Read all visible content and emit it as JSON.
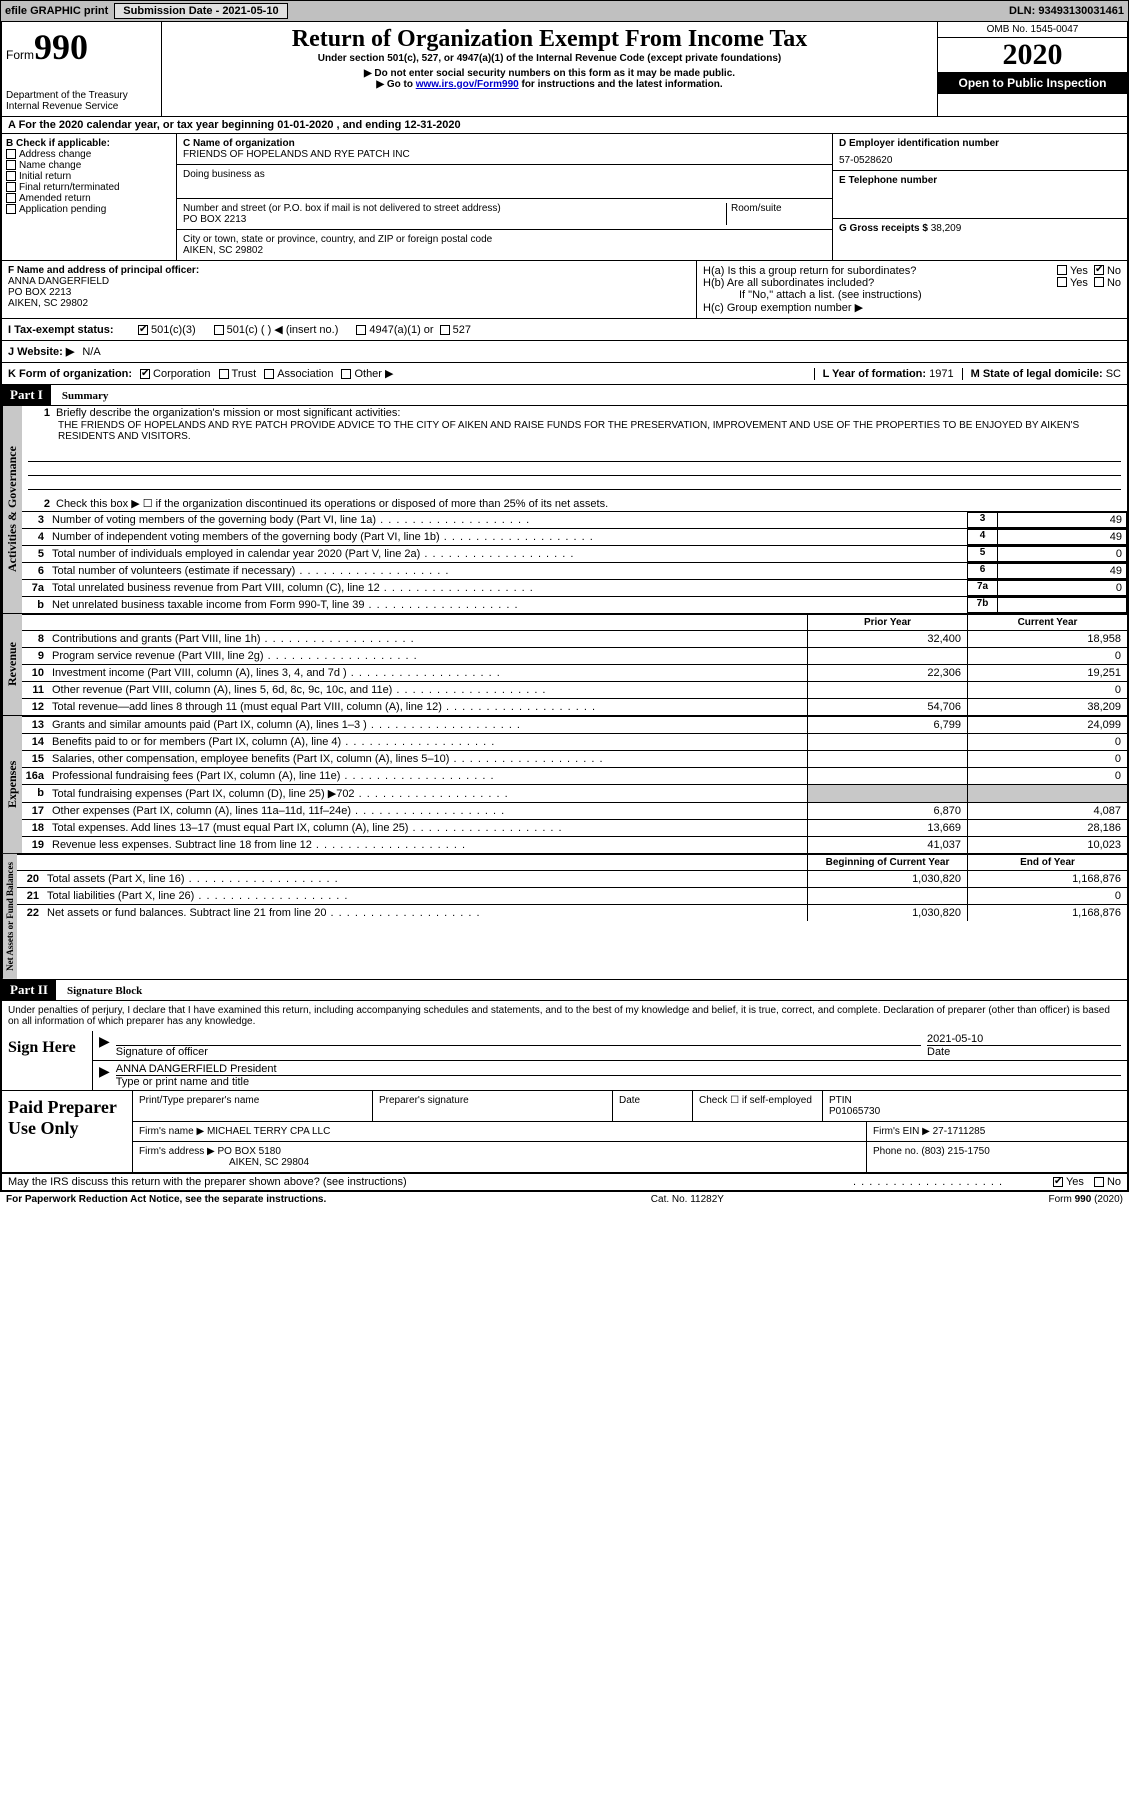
{
  "topbar": {
    "efile": "efile GRAPHIC print",
    "submission_label": "Submission Date - 2021-05-10",
    "dln": "DLN: 93493130031461"
  },
  "header": {
    "form_label": "Form",
    "form_num": "990",
    "dept": "Department of the Treasury\nInternal Revenue Service",
    "title": "Return of Organization Exempt From Income Tax",
    "subtitle": "Under section 501(c), 527, or 4947(a)(1) of the Internal Revenue Code (except private foundations)",
    "note1": "▶ Do not enter social security numbers on this form as it may be made public.",
    "note2_a": "▶ Go to ",
    "note2_link": "www.irs.gov/Form990",
    "note2_b": " for instructions and the latest information.",
    "omb": "OMB No. 1545-0047",
    "year": "2020",
    "open": "Open to Public Inspection"
  },
  "section_a": "A For the 2020 calendar year, or tax year beginning 01-01-2020    , and ending 12-31-2020",
  "col_b": {
    "label": "B Check if applicable:",
    "items": [
      "Address change",
      "Name change",
      "Initial return",
      "Final return/terminated",
      "Amended return",
      "Application pending"
    ]
  },
  "col_c": {
    "name_lbl": "C Name of organization",
    "name": "FRIENDS OF HOPELANDS AND RYE PATCH INC",
    "dba_lbl": "Doing business as",
    "addr_lbl": "Number and street (or P.O. box if mail is not delivered to street address)",
    "room_lbl": "Room/suite",
    "addr": "PO BOX 2213",
    "city_lbl": "City or town, state or province, country, and ZIP or foreign postal code",
    "city": "AIKEN, SC  29802"
  },
  "col_d": {
    "lbl": "D Employer identification number",
    "val": "57-0528620"
  },
  "col_e": {
    "lbl": "E Telephone number",
    "val": ""
  },
  "col_g": {
    "lbl": "G Gross receipts $",
    "val": "38,209"
  },
  "col_f": {
    "lbl": "F  Name and address of principal officer:",
    "name": "ANNA DANGERFIELD",
    "addr1": "PO BOX 2213",
    "addr2": "AIKEN, SC  29802"
  },
  "col_h": {
    "a_lbl": "H(a)  Is this a group return for subordinates?",
    "b_lbl": "H(b)  Are all subordinates included?",
    "b_note": "If \"No,\" attach a list. (see instructions)",
    "c_lbl": "H(c)  Group exemption number ▶",
    "yes": "Yes",
    "no": "No"
  },
  "tax_status": {
    "i_lbl": "I  Tax-exempt status:",
    "c3": "501(c)(3)",
    "c": "501(c) (  ) ◀ (insert no.)",
    "a1": "4947(a)(1) or",
    "s527": "527"
  },
  "website": {
    "lbl": "J  Website: ▶",
    "val": "N/A"
  },
  "k_row": {
    "lbl": "K Form of organization:",
    "corp": "Corporation",
    "trust": "Trust",
    "assoc": "Association",
    "other": "Other ▶",
    "l_lbl": "L Year of formation:",
    "l_val": "1971",
    "m_lbl": "M State of legal domicile:",
    "m_val": "SC"
  },
  "part1": {
    "hdr": "Part I",
    "title": "Summary",
    "l1_lbl": "Briefly describe the organization's mission or most significant activities:",
    "l1_text": "THE FRIENDS OF HOPELANDS AND RYE PATCH PROVIDE ADVICE TO THE CITY OF AIKEN AND RAISE FUNDS FOR THE PRESERVATION, IMPROVEMENT AND USE OF THE PROPERTIES TO BE ENJOYED BY AIKEN'S RESIDENTS AND VISITORS.",
    "l2": "Check this box ▶ ☐  if the organization discontinued its operations or disposed of more than 25% of its net assets.",
    "lines_gov": [
      {
        "n": "3",
        "t": "Number of voting members of the governing body (Part VI, line 1a)",
        "box": "3",
        "v": "49"
      },
      {
        "n": "4",
        "t": "Number of independent voting members of the governing body (Part VI, line 1b)",
        "box": "4",
        "v": "49"
      },
      {
        "n": "5",
        "t": "Total number of individuals employed in calendar year 2020 (Part V, line 2a)",
        "box": "5",
        "v": "0"
      },
      {
        "n": "6",
        "t": "Total number of volunteers (estimate if necessary)",
        "box": "6",
        "v": "49"
      },
      {
        "n": "7a",
        "t": "Total unrelated business revenue from Part VIII, column (C), line 12",
        "box": "7a",
        "v": "0"
      },
      {
        "n": "b",
        "t": "Net unrelated business taxable income from Form 990-T, line 39",
        "box": "7b",
        "v": ""
      }
    ],
    "prior_hdr": "Prior Year",
    "curr_hdr": "Current Year",
    "rev_rows": [
      {
        "n": "8",
        "t": "Contributions and grants (Part VIII, line 1h)",
        "p": "32,400",
        "c": "18,958"
      },
      {
        "n": "9",
        "t": "Program service revenue (Part VIII, line 2g)",
        "p": "",
        "c": "0"
      },
      {
        "n": "10",
        "t": "Investment income (Part VIII, column (A), lines 3, 4, and 7d )",
        "p": "22,306",
        "c": "19,251"
      },
      {
        "n": "11",
        "t": "Other revenue (Part VIII, column (A), lines 5, 6d, 8c, 9c, 10c, and 11e)",
        "p": "",
        "c": "0"
      },
      {
        "n": "12",
        "t": "Total revenue—add lines 8 through 11 (must equal Part VIII, column (A), line 12)",
        "p": "54,706",
        "c": "38,209"
      }
    ],
    "exp_rows": [
      {
        "n": "13",
        "t": "Grants and similar amounts paid (Part IX, column (A), lines 1–3 )",
        "p": "6,799",
        "c": "24,099"
      },
      {
        "n": "14",
        "t": "Benefits paid to or for members (Part IX, column (A), line 4)",
        "p": "",
        "c": "0"
      },
      {
        "n": "15",
        "t": "Salaries, other compensation, employee benefits (Part IX, column (A), lines 5–10)",
        "p": "",
        "c": "0"
      },
      {
        "n": "16a",
        "t": "Professional fundraising fees (Part IX, column (A), line 11e)",
        "p": "",
        "c": "0"
      },
      {
        "n": "b",
        "t": "Total fundraising expenses (Part IX, column (D), line 25) ▶702",
        "p": "GRAY",
        "c": "GRAY"
      },
      {
        "n": "17",
        "t": "Other expenses (Part IX, column (A), lines 11a–11d, 11f–24e)",
        "p": "6,870",
        "c": "4,087"
      },
      {
        "n": "18",
        "t": "Total expenses. Add lines 13–17 (must equal Part IX, column (A), line 25)",
        "p": "13,669",
        "c": "28,186"
      },
      {
        "n": "19",
        "t": "Revenue less expenses. Subtract line 18 from line 12",
        "p": "41,037",
        "c": "10,023"
      }
    ],
    "net_hdr_p": "Beginning of Current Year",
    "net_hdr_c": "End of Year",
    "net_rows": [
      {
        "n": "20",
        "t": "Total assets (Part X, line 16)",
        "p": "1,030,820",
        "c": "1,168,876"
      },
      {
        "n": "21",
        "t": "Total liabilities (Part X, line 26)",
        "p": "",
        "c": "0"
      },
      {
        "n": "22",
        "t": "Net assets or fund balances. Subtract line 21 from line 20",
        "p": "1,030,820",
        "c": "1,168,876"
      }
    ],
    "gov_label": "Activities & Governance",
    "rev_label": "Revenue",
    "exp_label": "Expenses",
    "net_label": "Net Assets or Fund Balances"
  },
  "part2": {
    "hdr": "Part II",
    "title": "Signature Block",
    "decl": "Under penalties of perjury, I declare that I have examined this return, including accompanying schedules and statements, and to the best of my knowledge and belief, it is true, correct, and complete. Declaration of preparer (other than officer) is based on all information of which preparer has any knowledge.",
    "sign_here": "Sign Here",
    "sig_officer": "Signature of officer",
    "date_lbl": "Date",
    "date_val": "2021-05-10",
    "officer_name": "ANNA DANGERFIELD President",
    "type_name": "Type or print name and title",
    "paid": "Paid Preparer Use Only",
    "prep_name_lbl": "Print/Type preparer's name",
    "prep_sig_lbl": "Preparer's signature",
    "prep_date_lbl": "Date",
    "check_self": "Check ☐ if self-employed",
    "ptin_lbl": "PTIN",
    "ptin": "P01065730",
    "firm_name_lbl": "Firm's name    ▶",
    "firm_name": "MICHAEL TERRY CPA LLC",
    "firm_ein_lbl": "Firm's EIN ▶",
    "firm_ein": "27-1711285",
    "firm_addr_lbl": "Firm's address ▶",
    "firm_addr1": "PO BOX 5180",
    "firm_addr2": "AIKEN, SC  29804",
    "phone_lbl": "Phone no.",
    "phone": "(803) 215-1750",
    "discuss": "May the IRS discuss this return with the preparer shown above? (see instructions)",
    "yes": "Yes",
    "no": "No"
  },
  "footer": {
    "left": "For Paperwork Reduction Act Notice, see the separate instructions.",
    "mid": "Cat. No. 11282Y",
    "right": "Form 990 (2020)"
  }
}
